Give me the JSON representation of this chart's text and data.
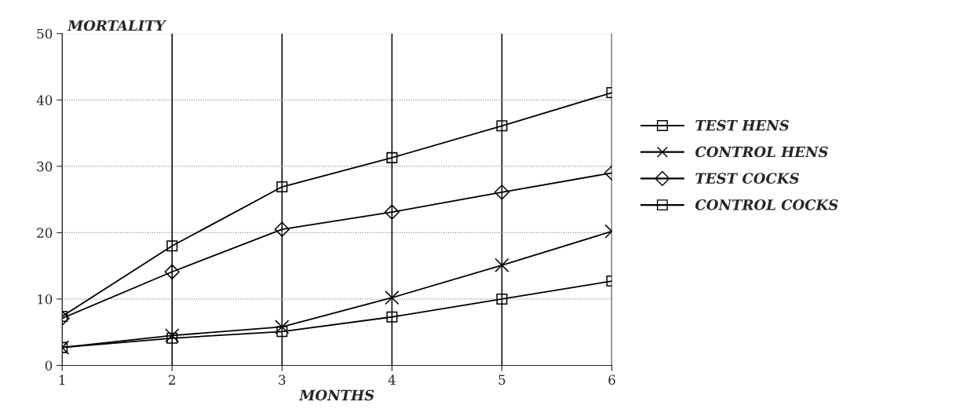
{
  "chart_data": {
    "type": "line",
    "xlabel": "MONTHS",
    "ylabel": "MORTALITY",
    "x": [
      1,
      2,
      3,
      4,
      5,
      6
    ],
    "series": [
      {
        "name": "TEST HENS",
        "color": "#000000",
        "marker": "square",
        "values": [
          7.4,
          18.0,
          26.9,
          31.3,
          36.1,
          41.1
        ]
      },
      {
        "name": "CONTROL HENS",
        "color": "#000000",
        "marker": "cross",
        "values": [
          2.7,
          4.5,
          5.8,
          10.2,
          15.1,
          20.2
        ]
      },
      {
        "name": "TEST COCKS",
        "color": "#000000",
        "marker": "diamond",
        "values": [
          7.1,
          14.1,
          20.5,
          23.1,
          26.1,
          29.0
        ]
      },
      {
        "name": "CONTROL COCKS",
        "color": "#000000",
        "marker": "square",
        "values": [
          2.7,
          4.1,
          5.1,
          7.3,
          10.0,
          12.7
        ]
      }
    ],
    "xlim": [
      1,
      6
    ],
    "xticks": [
      1,
      2,
      3,
      4,
      5,
      6
    ],
    "ylim": [
      0,
      50
    ],
    "yticks": [
      0,
      10,
      20,
      30,
      40,
      50
    ],
    "grid": true,
    "legend": "right",
    "line_style": "solid"
  }
}
